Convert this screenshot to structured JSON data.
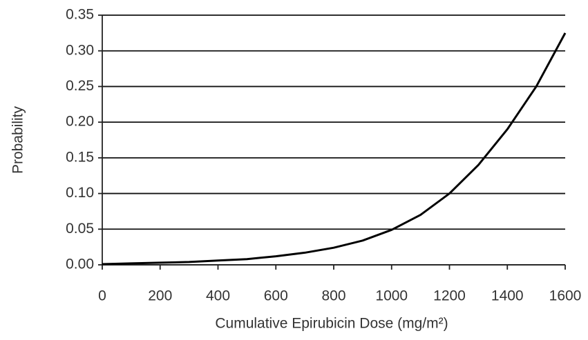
{
  "chart_data": {
    "type": "line",
    "x_label": "Cumulative Epirubicin Dose (mg/m²)",
    "y_label": "Probability",
    "x": [
      0,
      100,
      200,
      300,
      400,
      500,
      600,
      700,
      800,
      900,
      1000,
      1100,
      1200,
      1300,
      1400,
      1500,
      1600
    ],
    "values": [
      0.001,
      0.002,
      0.003,
      0.004,
      0.006,
      0.008,
      0.012,
      0.017,
      0.024,
      0.034,
      0.049,
      0.07,
      0.1,
      0.14,
      0.19,
      0.25,
      0.325
    ],
    "color": "#000000",
    "xlim": [
      0,
      1600
    ],
    "xticks": [
      0,
      200,
      400,
      600,
      800,
      1000,
      1200,
      1400,
      1600
    ],
    "ylim": [
      0,
      0.35
    ],
    "yticks": [
      {
        "value": 0,
        "label": "0.00"
      },
      {
        "value": 0.05,
        "label": "0.05"
      },
      {
        "value": 0.1,
        "label": "0.10"
      },
      {
        "value": 0.15,
        "label": "0.15"
      },
      {
        "value": 0.2,
        "label": "0.20"
      },
      {
        "value": 0.25,
        "label": "0.25"
      },
      {
        "value": 0.3,
        "label": "0.30"
      },
      {
        "value": 0.35,
        "label": "0.35"
      }
    ],
    "grid": true
  }
}
